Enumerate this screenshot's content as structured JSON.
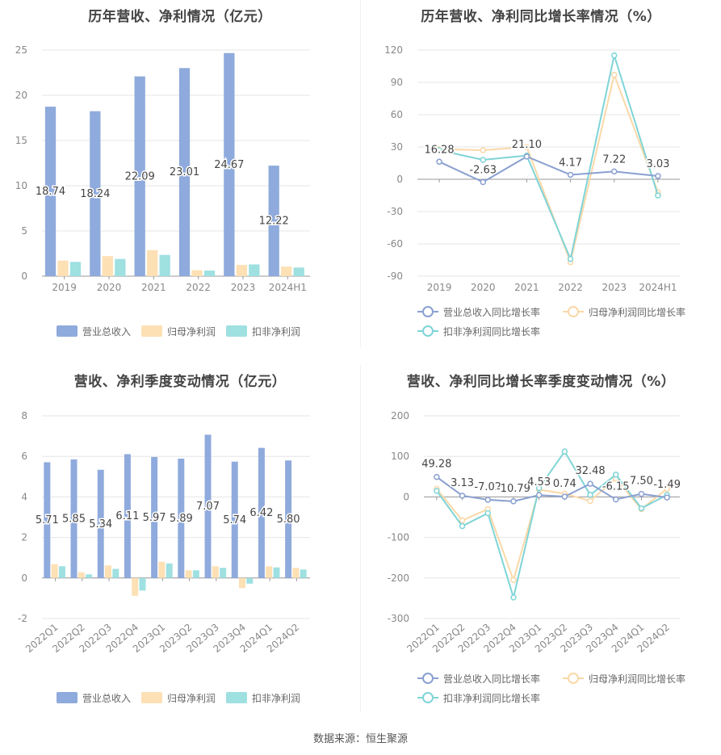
{
  "colors": {
    "revenue": "#8faadc",
    "net_profit": "#fde0b4",
    "deducted_profit": "#9fe0e1",
    "revenue_line": "#8aa0d0",
    "net_line": "#fad8a8",
    "deducted_line": "#7fd4d6",
    "grid": "#e6e6e6",
    "axis_text": "#888888",
    "label_text": "#444444"
  },
  "source_text": "数据来源：恒生聚源",
  "chart_data": [
    {
      "type": "bar",
      "title": "历年营收、净利情况（亿元）",
      "categories": [
        "2019",
        "2020",
        "2021",
        "2022",
        "2023",
        "2024H1"
      ],
      "ylim": [
        0,
        25
      ],
      "yticks": [
        0,
        5,
        10,
        15,
        20,
        25
      ],
      "series": [
        {
          "name": "营业总收入",
          "values": [
            18.74,
            18.24,
            22.09,
            23.01,
            24.67,
            12.22
          ],
          "labels": [
            "18.74",
            "18.24",
            "22.09",
            "23.01",
            "24.67",
            "12.22"
          ]
        },
        {
          "name": "归母净利润",
          "values": [
            1.72,
            2.22,
            2.88,
            0.65,
            1.24,
            1.06
          ]
        },
        {
          "name": "扣非净利润",
          "values": [
            1.58,
            1.9,
            2.35,
            0.62,
            1.3,
            0.95
          ]
        }
      ],
      "legend": [
        "营业总收入",
        "归母净利润",
        "扣非净利润"
      ]
    },
    {
      "type": "line",
      "title": "历年营收、净利同比增长率情况（%）",
      "categories": [
        "2019",
        "2020",
        "2021",
        "2022",
        "2023",
        "2024H1"
      ],
      "ylim": [
        -90,
        120
      ],
      "yticks": [
        -90,
        -60,
        -30,
        0,
        30,
        60,
        90,
        120
      ],
      "series": [
        {
          "name": "营业总收入同比增长率",
          "values": [
            16.28,
            -2.63,
            21.1,
            4.17,
            7.22,
            3.03
          ],
          "labels": [
            "16.28",
            "-2.63",
            "21.10",
            "4.17",
            "7.22",
            "3.03"
          ]
        },
        {
          "name": "归母净利润同比增长率",
          "values": [
            28,
            27,
            30,
            -77,
            97,
            -12
          ]
        },
        {
          "name": "扣非净利润同比增长率",
          "values": [
            27,
            18,
            22,
            -74,
            115,
            -15
          ]
        }
      ],
      "legend": [
        "营业总收入同比增长率",
        "归母净利润同比增长率",
        "扣非净利润同比增长率"
      ]
    },
    {
      "type": "bar",
      "title": "营收、净利季度变动情况（亿元）",
      "categories": [
        "2022Q1",
        "2022Q2",
        "2022Q3",
        "2022Q4",
        "2023Q1",
        "2023Q2",
        "2023Q3",
        "2023Q4",
        "2024Q1",
        "2024Q2"
      ],
      "ylim": [
        -2,
        8
      ],
      "yticks": [
        -2,
        0,
        2,
        4,
        6,
        8
      ],
      "series": [
        {
          "name": "营业总收入",
          "values": [
            5.71,
            5.85,
            5.34,
            6.11,
            5.97,
            5.89,
            7.07,
            5.74,
            6.42,
            5.8
          ],
          "labels": [
            "5.71",
            "5.85",
            "5.34",
            "6.11",
            "5.97",
            "5.89",
            "7.07",
            "5.74",
            "6.42",
            "5.80"
          ]
        },
        {
          "name": "归母净利润",
          "values": [
            0.68,
            0.28,
            0.62,
            -0.88,
            0.8,
            0.38,
            0.58,
            -0.5,
            0.58,
            0.5
          ]
        },
        {
          "name": "扣非净利润",
          "values": [
            0.58,
            0.18,
            0.45,
            -0.62,
            0.72,
            0.38,
            0.5,
            -0.28,
            0.52,
            0.42
          ]
        }
      ],
      "legend": [
        "营业总收入",
        "归母净利润",
        "扣非净利润"
      ]
    },
    {
      "type": "line",
      "title": "营收、净利同比增长率季度变动情况（%）",
      "categories": [
        "2022Q1",
        "2022Q2",
        "2022Q3",
        "2022Q4",
        "2023Q1",
        "2023Q2",
        "2023Q3",
        "2023Q4",
        "2024Q1",
        "2024Q2"
      ],
      "ylim": [
        -300,
        200
      ],
      "yticks": [
        -300,
        -200,
        -100,
        0,
        100,
        200
      ],
      "series": [
        {
          "name": "营业总收入同比增长率",
          "values": [
            49.28,
            3.13,
            -7.02,
            -10.79,
            4.53,
            0.74,
            32.48,
            -6.15,
            7.5,
            -1.49
          ],
          "labels": [
            "49.28",
            "3.13",
            "-7.02",
            "-10.79",
            "4.53",
            "0.74",
            "32.48",
            "-6.15",
            "7.50",
            "-1.49"
          ]
        },
        {
          "name": "归母净利润同比增长率",
          "values": [
            20,
            -58,
            -30,
            -205,
            18,
            8,
            -10,
            45,
            -30,
            20
          ]
        },
        {
          "name": "扣非净利润同比增长率",
          "values": [
            15,
            -72,
            -40,
            -248,
            22,
            112,
            5,
            55,
            -28,
            5
          ]
        }
      ],
      "legend": [
        "营业总收入同比增长率",
        "归母净利润同比增长率",
        "扣非净利润同比增长率"
      ]
    }
  ]
}
